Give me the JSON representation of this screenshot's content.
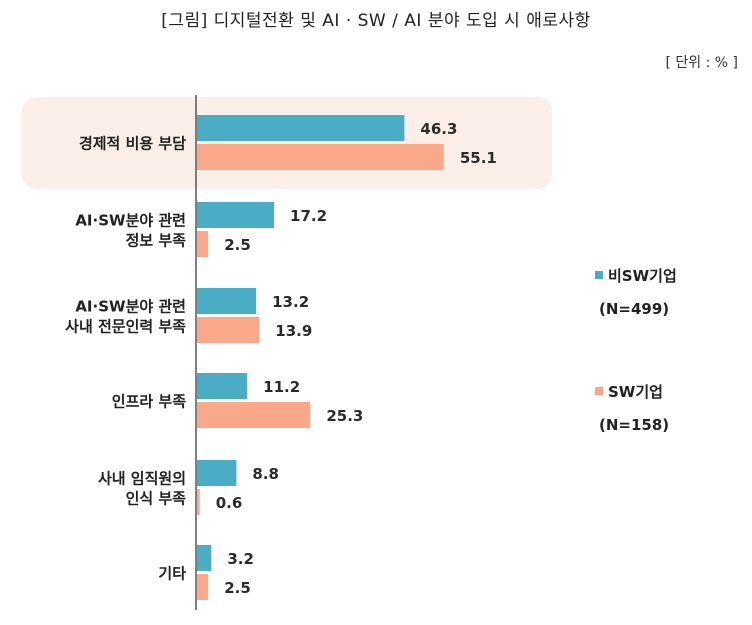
{
  "header": {
    "title": "[그림] 디지털전환 및 AI · SW / AI 분야 도입 시 애로사항",
    "unit": "[ 단위 : % ]"
  },
  "colors": {
    "series_1": "#4bacc6",
    "series_2": "#f9a98a",
    "highlight": "#fbeee9",
    "axis": "#555555"
  },
  "legend": [
    {
      "name": "비SW기업",
      "note": "(N=499)"
    },
    {
      "name": "SW기업",
      "note": "(N=158)"
    }
  ],
  "chart_data": {
    "type": "bar",
    "orientation": "horizontal",
    "categories": [
      [
        "경제적 비용 부담"
      ],
      [
        "AI·SW분야 관련",
        "정보 부족"
      ],
      [
        "AI·SW분야 관련",
        "사내 전문인력 부족"
      ],
      [
        "인프라 부족"
      ],
      [
        "사내 임직원의",
        "인식 부족"
      ],
      [
        "기타"
      ]
    ],
    "series": [
      {
        "name": "비SW기업",
        "values": [
          46.3,
          17.2,
          13.2,
          11.2,
          8.8,
          3.2
        ]
      },
      {
        "name": "SW기업",
        "values": [
          55.1,
          2.5,
          13.9,
          25.3,
          0.6,
          2.5
        ]
      }
    ],
    "value_labels": {
      "비SW기업": [
        "46.3",
        "17.2",
        "13.2",
        "11.2",
        "8.8",
        "3.2"
      ],
      "SW기업": [
        "55.1",
        "2.5",
        "13.9",
        "25.3",
        "0.6",
        "2.5"
      ]
    },
    "xlim": [
      0,
      60
    ],
    "grid": false,
    "highlighted_category": "경제적 비용 부담",
    "legend_position": "right"
  }
}
